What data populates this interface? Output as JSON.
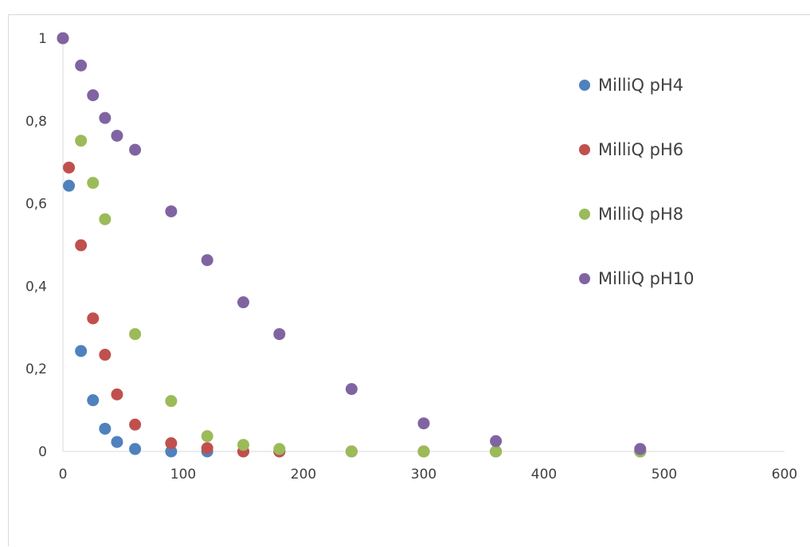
{
  "chart_data": {
    "type": "scatter",
    "title": "",
    "xlabel": "",
    "ylabel": "",
    "xlim": [
      0,
      600
    ],
    "ylim": [
      0,
      1
    ],
    "x_ticks": [
      "0",
      "100",
      "200",
      "300",
      "400",
      "500",
      "600"
    ],
    "y_ticks": [
      "0",
      "0,2",
      "0,4",
      "0,6",
      "0,8",
      "1"
    ],
    "grid": false,
    "legend_position": "right",
    "series": [
      {
        "name": "MilliQ pH4",
        "color": "#4f81bd",
        "points": [
          [
            0,
            1
          ],
          [
            5,
            0.643
          ],
          [
            15,
            0.243
          ],
          [
            25,
            0.124
          ],
          [
            35,
            0.055
          ],
          [
            45,
            0.023
          ],
          [
            60,
            0.006
          ],
          [
            90,
            0
          ],
          [
            120,
            0
          ],
          [
            150,
            0
          ],
          [
            180,
            0
          ],
          [
            240,
            0
          ],
          [
            300,
            0
          ],
          [
            360,
            0
          ],
          [
            480,
            0
          ]
        ]
      },
      {
        "name": "MilliQ pH6",
        "color": "#c0504d",
        "points": [
          [
            0,
            1
          ],
          [
            5,
            0.687
          ],
          [
            15,
            0.499
          ],
          [
            25,
            0.322
          ],
          [
            35,
            0.234
          ],
          [
            45,
            0.138
          ],
          [
            60,
            0.065
          ],
          [
            90,
            0.02
          ],
          [
            120,
            0.008
          ],
          [
            150,
            0
          ],
          [
            180,
            0
          ],
          [
            240,
            0
          ],
          [
            300,
            0
          ],
          [
            360,
            0
          ],
          [
            480,
            0
          ]
        ]
      },
      {
        "name": "MilliQ pH8",
        "color": "#9bbb59",
        "points": [
          [
            0,
            1
          ],
          [
            15,
            0.752
          ],
          [
            25,
            0.65
          ],
          [
            35,
            0.562
          ],
          [
            60,
            0.284
          ],
          [
            90,
            0.122
          ],
          [
            120,
            0.037
          ],
          [
            150,
            0.016
          ],
          [
            180,
            0.006
          ],
          [
            240,
            0
          ],
          [
            300,
            0
          ],
          [
            360,
            0
          ],
          [
            480,
            0
          ]
        ]
      },
      {
        "name": "MilliQ pH10",
        "color": "#8064a2",
        "points": [
          [
            0,
            1
          ],
          [
            15,
            0.934
          ],
          [
            25,
            0.862
          ],
          [
            35,
            0.807
          ],
          [
            45,
            0.764
          ],
          [
            60,
            0.73
          ],
          [
            90,
            0.581
          ],
          [
            120,
            0.463
          ],
          [
            150,
            0.361
          ],
          [
            180,
            0.284
          ],
          [
            240,
            0.151
          ],
          [
            300,
            0.068
          ],
          [
            360,
            0.025
          ],
          [
            480,
            0.006
          ]
        ]
      }
    ]
  }
}
